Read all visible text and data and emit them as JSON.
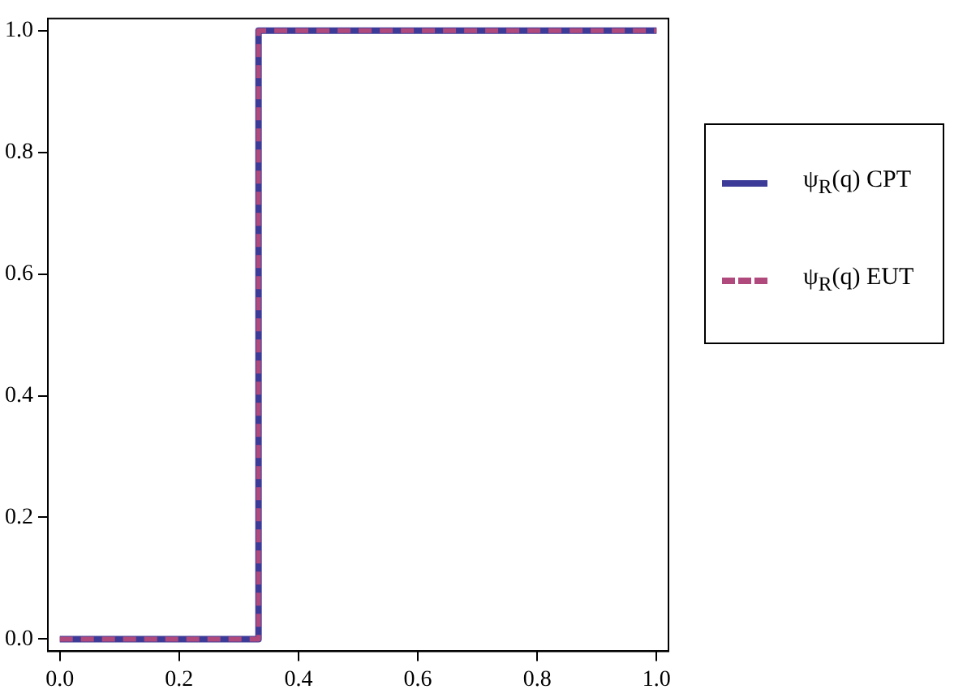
{
  "chart_data": {
    "type": "step",
    "xlim": [
      -0.02,
      1.02
    ],
    "ylim": [
      -0.02,
      1.02
    ],
    "xticks": [
      {
        "value": 0,
        "label": "0.0"
      },
      {
        "value": 0.2,
        "label": "0.2"
      },
      {
        "value": 0.4,
        "label": "0.4"
      },
      {
        "value": 0.6,
        "label": "0.6"
      },
      {
        "value": 0.8,
        "label": "0.8"
      },
      {
        "value": 1,
        "label": "1.0"
      }
    ],
    "yticks": [
      {
        "value": 0,
        "label": "0.0"
      },
      {
        "value": 0.2,
        "label": "0.2"
      },
      {
        "value": 0.4,
        "label": "0.4"
      },
      {
        "value": 0.6,
        "label": "0.6"
      },
      {
        "value": 0.8,
        "label": "0.8"
      },
      {
        "value": 1,
        "label": "1.0"
      }
    ],
    "grid": false,
    "legend": "right",
    "marker": "none",
    "series": [
      {
        "name": "ψ$_{R}$(q) CPT",
        "color": "#3d3b98",
        "x": [
          0,
          0.333,
          1
        ],
        "values": [
          0,
          1,
          1
        ],
        "line_style": "solid"
      },
      {
        "name": "ψ$_{R}$(q) EUT",
        "color": "#b0497c",
        "x": [
          0,
          0.333,
          1
        ],
        "values": [
          0,
          1,
          1
        ],
        "line_style": "dashed"
      }
    ]
  }
}
